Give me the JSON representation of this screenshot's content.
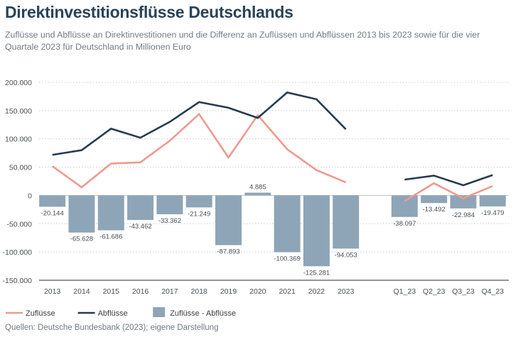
{
  "title": "Direktinvestitionsflüsse Deutschlands",
  "subtitle": "Zuflüsse und Abflüsse an Direktinvestitionen und die Differenz an Zuflüssen und Abflüssen 2013 bis 2023 sowie für die vier Quartale 2023 für Deutschland in Millionen Euro",
  "source": "Quellen: Deutsche Bundesbank (2023); eigene Darstellung",
  "chart_data": {
    "type": "bar+line",
    "categories": [
      "2013",
      "2014",
      "2015",
      "2016",
      "2017",
      "2018",
      "2019",
      "2020",
      "2021",
      "2022",
      "2023",
      "",
      "Q1_23",
      "Q2_23",
      "Q3_23",
      "Q4_23"
    ],
    "ylim": [
      -150000,
      200000
    ],
    "yticks": [
      200000,
      150000,
      100000,
      50000,
      0,
      -50000,
      -100000,
      -150000
    ],
    "ytick_labels": [
      "200.000",
      "150.000",
      "100.000",
      "50.000",
      "0",
      "-50.000",
      "-100.000",
      "-150.000"
    ],
    "grid": "horizontal dotted",
    "legend_position": "bottom-left",
    "series": [
      {
        "name": "Zuflüsse",
        "kind": "line",
        "color": "#ee9a8f",
        "values": [
          51600,
          14400,
          56300,
          58500,
          96600,
          143800,
          67000,
          141900,
          81600,
          44700,
          23000,
          null,
          -10000,
          21500,
          -5000,
          16500
        ]
      },
      {
        "name": "Abflüsse",
        "kind": "line",
        "color": "#253c51",
        "values": [
          71700,
          80000,
          118000,
          102000,
          130000,
          165000,
          155000,
          137000,
          182000,
          170000,
          117000,
          null,
          28000,
          35000,
          18000,
          36000
        ]
      },
      {
        "name": "Zuflüsse - Abflüsse",
        "kind": "bar",
        "color": "#8ea5b7",
        "values": [
          -20144,
          -65628,
          -61686,
          -43462,
          -33362,
          -21249,
          -87893,
          4885,
          -100369,
          -125281,
          -94053,
          null,
          -38097,
          -13492,
          -22984,
          -19479
        ],
        "labels": [
          "-20.144",
          "-65.628",
          "-61.686",
          "-43.462",
          "-33.362",
          "-21.249",
          "-87.893",
          "4.885",
          "-100.369",
          "-125.281",
          "-94.053",
          "",
          "-38.097",
          "-13.492",
          "-22.984",
          "-19.479"
        ]
      }
    ]
  }
}
